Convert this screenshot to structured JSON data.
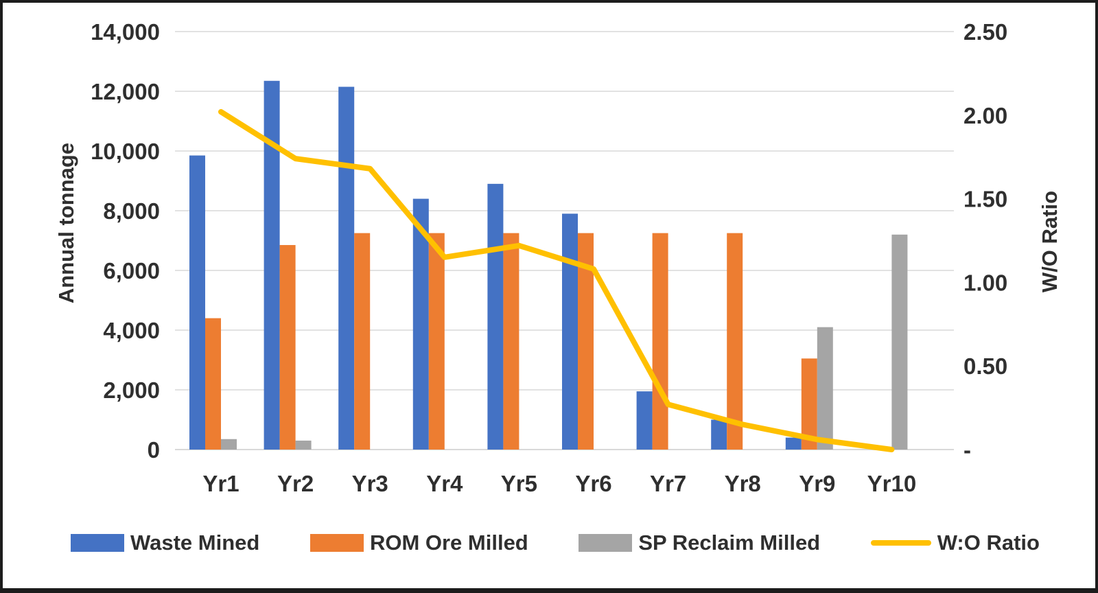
{
  "chart_data": {
    "type": "combo-bar-line",
    "title": "",
    "categories": [
      "Yr1",
      "Yr2",
      "Yr3",
      "Yr4",
      "Yr5",
      "Yr6",
      "Yr7",
      "Yr8",
      "Yr9",
      "Yr10"
    ],
    "series": [
      {
        "name": "Waste Mined",
        "type": "bar",
        "axis": "left",
        "color": "#4472C4",
        "values": [
          9850,
          12350,
          12150,
          8400,
          8900,
          7900,
          1950,
          1000,
          400,
          0
        ]
      },
      {
        "name": "ROM Ore Milled",
        "type": "bar",
        "axis": "left",
        "color": "#ED7D31",
        "values": [
          4400,
          6850,
          7250,
          7250,
          7250,
          7250,
          7250,
          7250,
          3050,
          0
        ]
      },
      {
        "name": "SP Reclaim Milled",
        "type": "bar",
        "axis": "left",
        "color": "#A5A5A5",
        "values": [
          350,
          300,
          0,
          0,
          0,
          0,
          0,
          0,
          4100,
          7200
        ]
      },
      {
        "name": "W:O Ratio",
        "type": "line",
        "axis": "right",
        "color": "#FFC000",
        "values": [
          2.02,
          1.74,
          1.68,
          1.15,
          1.22,
          1.08,
          0.27,
          0.15,
          0.06,
          0.0
        ]
      }
    ],
    "left_axis": {
      "title": "Annual tonnage",
      "min": 0,
      "max": 14000,
      "step": 2000,
      "tick_labels": [
        "14,000",
        "12,000",
        "10,000",
        "8,000",
        "6,000",
        "4,000",
        "2,000",
        "0"
      ]
    },
    "right_axis": {
      "title": "W/O Ratio",
      "min": 0,
      "max": 2.5,
      "step": 0.5,
      "tick_labels": [
        "2.50",
        "2.00",
        "1.50",
        "1.00",
        "0.50",
        "-"
      ]
    },
    "legend_position": "bottom",
    "grid": true
  },
  "styles": {
    "background": "#FFFFFF",
    "border_color": "#1C1C1C",
    "grid_color": "#D9D9D9",
    "text_color": "#2F2F2F"
  }
}
